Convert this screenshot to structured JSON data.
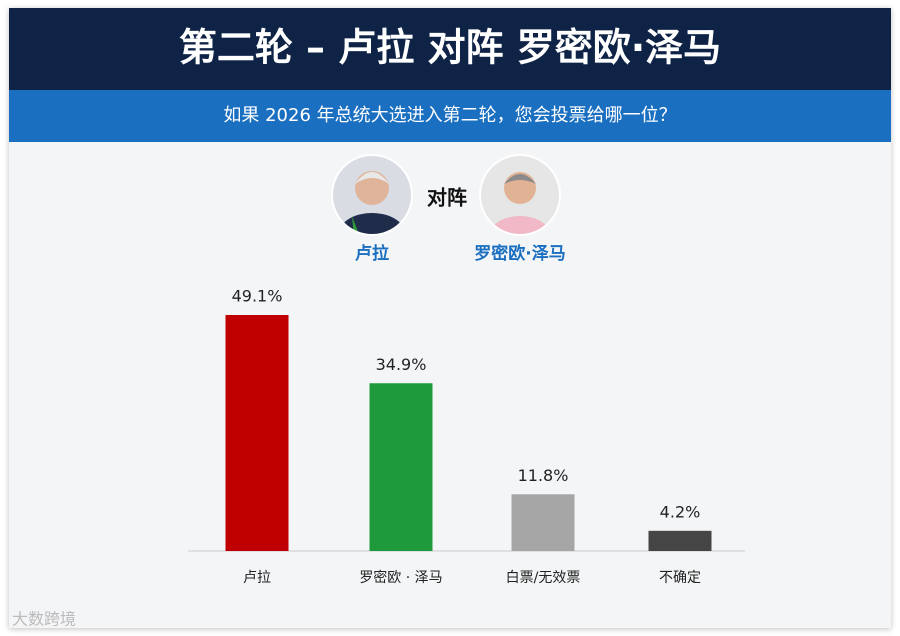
{
  "chart_data": {
    "type": "bar",
    "title": "第二轮 – 卢拉 对阵 罗密欧·泽马",
    "subtitle": "如果 2026 年总统大选进入第二轮，您会投票给哪一位？",
    "annotations": {
      "left_candidate": "卢拉",
      "versus": "对阵",
      "right_candidate": "罗密欧·泽马"
    },
    "categories": [
      "卢拉",
      "罗密欧 · 泽马",
      "白票/无效票",
      "不确定"
    ],
    "values": [
      49.1,
      34.9,
      11.8,
      4.2
    ],
    "value_labels": [
      "49.1%",
      "34.9%",
      "11.8%",
      "4.2%"
    ],
    "colors": [
      "#c00000",
      "#1e9a3c",
      "#a6a6a6",
      "#454545"
    ]
  },
  "watermark": "大数跨境"
}
